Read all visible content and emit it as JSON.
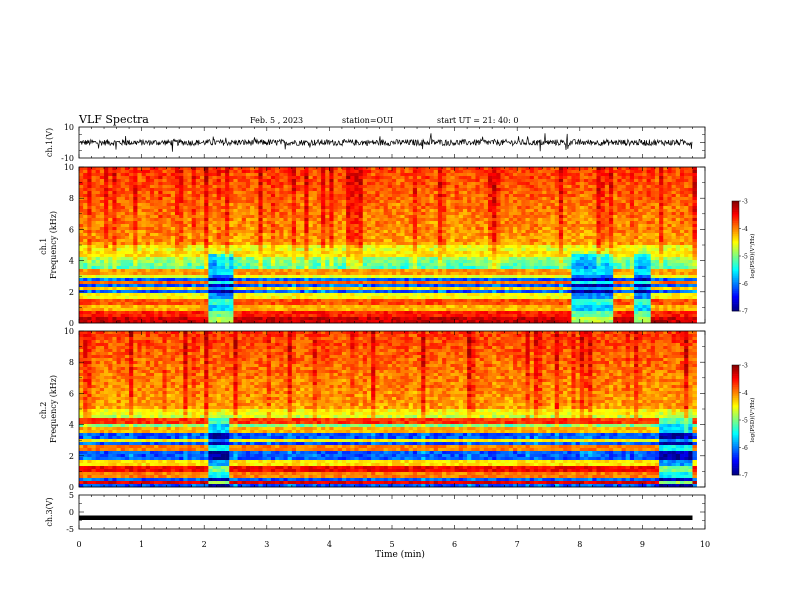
{
  "header": {
    "title": "VLF Spectra",
    "date": "Feb. 5 , 2023",
    "station": "station=OUI",
    "start": "start UT = 21: 40: 0"
  },
  "chart_data": [
    {
      "type": "line",
      "ylabel": "ch.1(V)",
      "xlim": [
        0,
        10
      ],
      "ylim": [
        -10,
        10
      ],
      "yticks": [
        "10",
        "-10"
      ],
      "series": [
        {
          "mean": 0,
          "typical_amplitude": 2,
          "spike_max": 6
        }
      ]
    },
    {
      "type": "heatmap",
      "ylabel": "ch.1\nFrequency (kHz)",
      "ylabel_lines": [
        "ch.1",
        "Frequency (kHz)"
      ],
      "xlim": [
        0,
        10
      ],
      "ylim": [
        0,
        10
      ],
      "yticks": [
        "0",
        "2",
        "4",
        "6",
        "8",
        "10"
      ],
      "colorbar": {
        "label": "log(PSD)(V²/Hz)",
        "range": [
          -7,
          -3
        ],
        "ticks": [
          "-3",
          "-4",
          "-5",
          "-6",
          "-7"
        ]
      },
      "quiet_intervals_min": [
        [
          2.05,
          2.45
        ],
        [
          7.85,
          8.5
        ],
        [
          8.85,
          9.1
        ]
      ],
      "lines_kHz": [
        {
          "f": 0.25,
          "level": -3.3
        },
        {
          "f": 0.6,
          "level": -3.6
        },
        {
          "f": 1.0,
          "level": -4.2
        },
        {
          "f": 1.3,
          "level": -3.8
        },
        {
          "f": 1.7,
          "level": -4.5
        },
        {
          "f": 2.2,
          "level": -4.3
        },
        {
          "f": 2.6,
          "level": -3.9
        },
        {
          "f": 3.0,
          "level": -4.6
        },
        {
          "f": 3.3,
          "level": -4.1
        },
        {
          "f": 4.4,
          "level": -4.4
        }
      ]
    },
    {
      "type": "heatmap",
      "ylabel": "ch.2\nFrequency (kHz)",
      "ylabel_lines": [
        "ch.2",
        "Frequency (kHz)"
      ],
      "xlim": [
        0,
        10
      ],
      "ylim": [
        0,
        10
      ],
      "yticks": [
        "0",
        "2",
        "4",
        "6",
        "8",
        "10"
      ],
      "colorbar": {
        "label": "log(PSD)(V²/Hz)",
        "range": [
          -7,
          -3
        ],
        "ticks": [
          "-3",
          "-4",
          "-5",
          "-6",
          "-7"
        ]
      },
      "quiet_intervals_min": [
        [
          2.05,
          2.4
        ],
        [
          9.3,
          9.8
        ]
      ],
      "lines_kHz": [
        {
          "f": 0.3,
          "level": -3.4
        },
        {
          "f": 0.8,
          "level": -4.0
        },
        {
          "f": 1.1,
          "level": -3.5
        },
        {
          "f": 1.5,
          "level": -4.4
        },
        {
          "f": 2.5,
          "level": -4.0
        },
        {
          "f": 3.0,
          "level": -4.5
        },
        {
          "f": 3.7,
          "level": -4.2
        },
        {
          "f": 4.2,
          "level": -3.7
        },
        {
          "f": 4.8,
          "level": -4.6
        }
      ]
    },
    {
      "type": "line",
      "ylabel": "ch.3(V)",
      "xlabel": "Time (min)",
      "xlim": [
        0,
        10
      ],
      "ylim": [
        -5,
        5
      ],
      "yticks": [
        "5",
        "0",
        "-5"
      ],
      "xticks": [
        "0",
        "1",
        "2",
        "3",
        "4",
        "5",
        "6",
        "7",
        "8",
        "9",
        "10"
      ],
      "series": [
        {
          "value": -1.7,
          "constant": true
        }
      ]
    }
  ]
}
